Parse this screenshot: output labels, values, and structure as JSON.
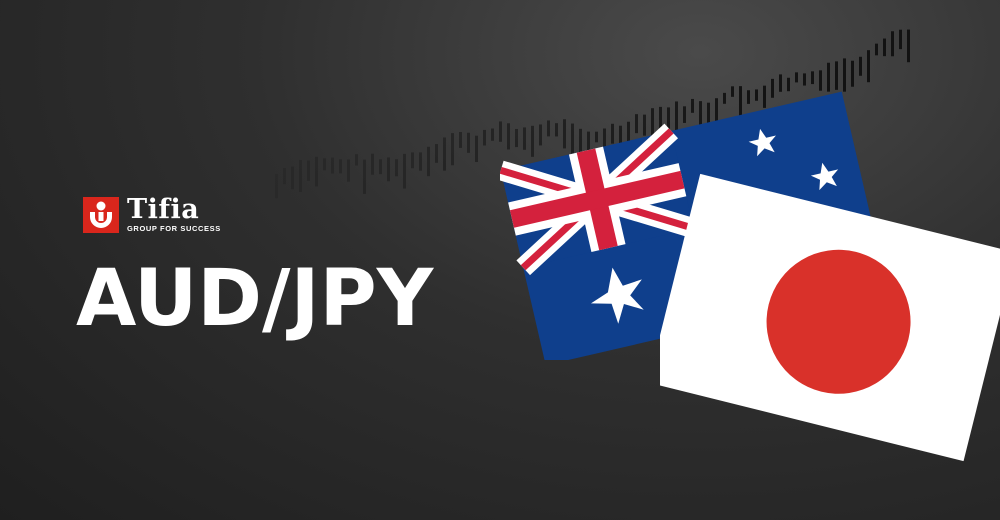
{
  "brand": {
    "name": "Tifia",
    "tagline": "GROUP FOR SUCCESS"
  },
  "headline": "AUD/JPY",
  "colors": {
    "brand_red": "#d9261c",
    "au_blue": "#0f3f8c",
    "au_red": "#d4213d",
    "jp_red": "#d9312a"
  },
  "icons": [
    "tifia-logo-mark",
    "australia-flag",
    "japan-flag",
    "candlestick-background"
  ]
}
